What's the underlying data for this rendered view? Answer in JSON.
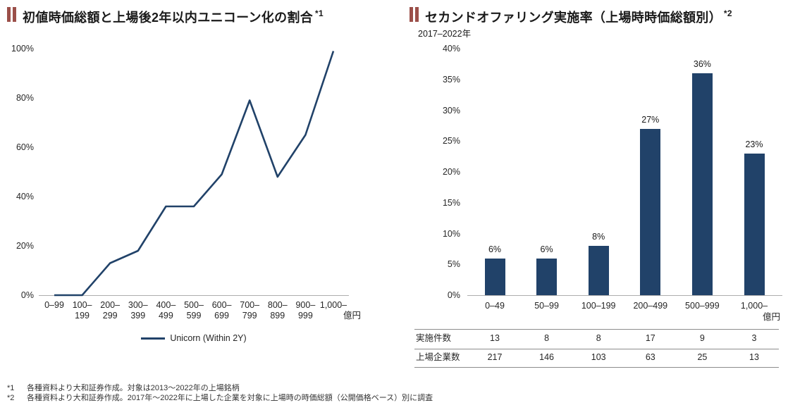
{
  "page": {
    "bg_color": "#ffffff",
    "accent_navy": "#214269",
    "accent_maroon": "#9B4F49"
  },
  "left_panel": {
    "title": "初値時価総額と上場後2年以内ユニコーン化の割合",
    "title_note": "*1"
  },
  "right_panel": {
    "title": "セカンドオファリング実施率（上場時時価総額別）",
    "title_note": "*2",
    "subtitle": "2017–2022年"
  },
  "chart_data": [
    {
      "type": "line",
      "title": "初値時価総額と上場後2年以内ユニコーン化の割合*1",
      "categories": [
        "0–99",
        "100–199",
        "200–299",
        "300–399",
        "400–499",
        "500–599",
        "600–699",
        "700–799",
        "800–899",
        "900–999",
        "1,000–"
      ],
      "x_unit": "億円",
      "series": [
        {
          "name": "Unicorn (Within 2Y)",
          "values": [
            0,
            0,
            13,
            18,
            36,
            36,
            49,
            79,
            48,
            65,
            99
          ]
        }
      ],
      "y_ticks": [
        "0%",
        "20%",
        "40%",
        "60%",
        "80%",
        "100%"
      ],
      "ylim": [
        0,
        100
      ],
      "y_step": 20,
      "grid": false,
      "line_color": "#214269",
      "legend_position": "bottom"
    },
    {
      "type": "bar",
      "title": "セカンドオファリング実施率（上場時時価総額別）*2",
      "subtitle": "2017–2022年",
      "categories": [
        "0–49",
        "50–99",
        "100–199",
        "200–499",
        "500–999",
        "1,000–"
      ],
      "x_unit": "億円",
      "values": [
        6,
        6,
        8,
        27,
        36,
        23
      ],
      "value_labels": [
        "6%",
        "6%",
        "8%",
        "27%",
        "36%",
        "23%"
      ],
      "y_ticks": [
        "0%",
        "5%",
        "10%",
        "15%",
        "20%",
        "25%",
        "30%",
        "35%",
        "40%"
      ],
      "ylim": [
        0,
        40
      ],
      "y_step": 5,
      "grid": false,
      "bar_color": "#214269",
      "table": {
        "rows": [
          {
            "label": "実施件数",
            "values": [
              13,
              8,
              8,
              17,
              9,
              3
            ]
          },
          {
            "label": "上場企業数",
            "values": [
              217,
              146,
              103,
              63,
              25,
              13
            ]
          }
        ]
      }
    }
  ],
  "footnotes": [
    {
      "marker": "*1",
      "text": "各種資料より大和証券作成。対象は2013～2022年の上場銘柄"
    },
    {
      "marker": "*2",
      "text": "各種資料より大和証券作成。2017年～2022年に上場した企業を対象に上場時の時価総額（公開価格ベース）別に調査"
    }
  ]
}
